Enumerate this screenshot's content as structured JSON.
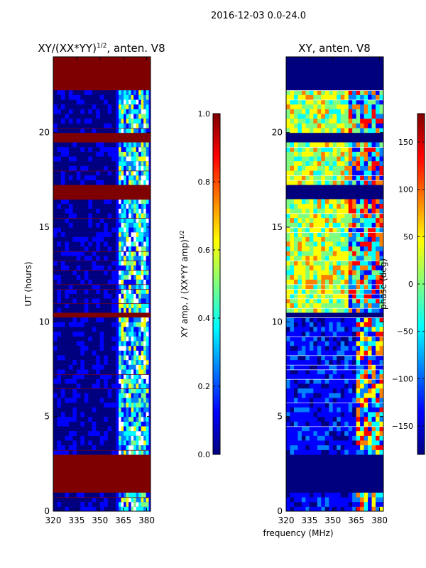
{
  "figure": {
    "suptitle": "2016-12-03 0.0-24.0",
    "shared_xlabel": "frequency (MHz)"
  },
  "colors": {
    "jet": [
      "#00007f",
      "#0000ff",
      "#007fff",
      "#00ffff",
      "#7fff7f",
      "#ffff00",
      "#ff7f00",
      "#ff0000",
      "#7f0000"
    ],
    "flag_high": "#7f0000",
    "flag_low": "#00007f",
    "axis": "#000000"
  },
  "chart_data": [
    {
      "type": "heatmap",
      "id": "amp",
      "title": "XY/(XX*YY)",
      "title_superscript": "1/2",
      "title_suffix": ", anten. V8",
      "xlabel": "",
      "ylabel": "UT (hours)",
      "xlim": [
        320,
        382.5
      ],
      "ylim": [
        0,
        24
      ],
      "xticks": [
        320,
        335,
        350,
        365,
        380
      ],
      "yticks": [
        0,
        5,
        10,
        15,
        20
      ],
      "colorbar": {
        "label": "XY amp. / (XX*YY amp)",
        "label_superscript": "1/2",
        "range": [
          0.0,
          1.0
        ],
        "ticks": [
          "0.0",
          "0.2",
          "0.4",
          "0.6",
          "0.8",
          "1.0"
        ]
      },
      "flagged_hours": [
        [
          0.98,
          3.1
        ],
        [
          10.2,
          10.5
        ],
        [
          16.4,
          17.3
        ],
        [
          19.4,
          19.9
        ],
        [
          22.2,
          24
        ]
      ],
      "data_channel_range": [
        362,
        381
      ]
    },
    {
      "type": "heatmap",
      "id": "phase",
      "title": "XY, anten. V8",
      "xlabel": "",
      "ylabel": "",
      "xlim": [
        320,
        382.5
      ],
      "ylim": [
        0,
        24
      ],
      "xticks": [
        320,
        335,
        350,
        365,
        380
      ],
      "yticks": [
        0,
        5,
        10,
        15,
        20
      ],
      "colorbar": {
        "label": "phase (deg)",
        "range": [
          -180,
          180
        ],
        "ticks": [
          "−150",
          "−100",
          "−50",
          "0",
          "50",
          "100",
          "150"
        ]
      },
      "flagged_hours": [
        [
          0.98,
          3.1
        ],
        [
          10.2,
          10.5
        ],
        [
          16.4,
          17.3
        ],
        [
          19.4,
          19.9
        ],
        [
          22.2,
          24
        ]
      ]
    }
  ]
}
